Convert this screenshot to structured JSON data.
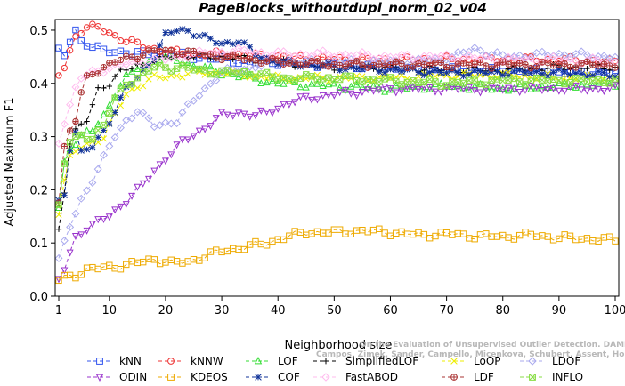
{
  "chart_data": {
    "type": "line",
    "title": "PageBlocks_withoutdupl_norm_02_v04",
    "xlabel": "Neighborhood size",
    "ylabel": "Adjusted Maximum F1",
    "xlim": [
      1,
      100
    ],
    "ylim": [
      0,
      0.52
    ],
    "xticks": [
      1,
      10,
      20,
      30,
      40,
      50,
      60,
      70,
      80,
      90,
      100
    ],
    "yticks": [
      0.0,
      0.1,
      0.2,
      0.3,
      0.4,
      0.5
    ],
    "ytick_labels": [
      "0.0",
      "0.1",
      "0.2",
      "0.3",
      "0.4",
      "0.5"
    ],
    "grid": false,
    "legend_position": "bottom",
    "watermark": [
      "Campos, Zimek, Sander, Campello, Micenkova, Schubert, Assent, Houle",
      "On the Evaluation of Unsupervised Outlier Detection. DAMI, 2015."
    ],
    "series": [
      {
        "name": "kNN",
        "color": "#3355ee",
        "marker": "square",
        "dash": "4,3",
        "points": [
          [
            1,
            0.46
          ],
          [
            2,
            0.45
          ],
          [
            3,
            0.48
          ],
          [
            4,
            0.5
          ],
          [
            5,
            0.48
          ],
          [
            7,
            0.47
          ],
          [
            9,
            0.46
          ],
          [
            12,
            0.46
          ],
          [
            16,
            0.455
          ],
          [
            20,
            0.455
          ],
          [
            25,
            0.45
          ],
          [
            30,
            0.445
          ],
          [
            35,
            0.44
          ],
          [
            40,
            0.44
          ],
          [
            50,
            0.435
          ],
          [
            60,
            0.43
          ],
          [
            70,
            0.425
          ],
          [
            80,
            0.425
          ],
          [
            90,
            0.42
          ],
          [
            100,
            0.42
          ]
        ]
      },
      {
        "name": "kNNW",
        "color": "#ee3333",
        "marker": "circle",
        "dash": "4,3",
        "points": [
          [
            1,
            0.415
          ],
          [
            2,
            0.43
          ],
          [
            3,
            0.46
          ],
          [
            4,
            0.49
          ],
          [
            5,
            0.5
          ],
          [
            6,
            0.505
          ],
          [
            8,
            0.505
          ],
          [
            10,
            0.495
          ],
          [
            13,
            0.48
          ],
          [
            16,
            0.47
          ],
          [
            20,
            0.46
          ],
          [
            25,
            0.455
          ],
          [
            30,
            0.455
          ],
          [
            40,
            0.45
          ],
          [
            50,
            0.445
          ],
          [
            60,
            0.445
          ],
          [
            70,
            0.445
          ],
          [
            80,
            0.445
          ],
          [
            90,
            0.445
          ],
          [
            100,
            0.44
          ]
        ]
      },
      {
        "name": "LOF",
        "color": "#33dd33",
        "marker": "triangle-up",
        "dash": "4,3",
        "points": [
          [
            1,
            0.165
          ],
          [
            2,
            0.25
          ],
          [
            3,
            0.28
          ],
          [
            5,
            0.3
          ],
          [
            7,
            0.31
          ],
          [
            9,
            0.34
          ],
          [
            11,
            0.38
          ],
          [
            13,
            0.41
          ],
          [
            15,
            0.43
          ],
          [
            18,
            0.445
          ],
          [
            22,
            0.445
          ],
          [
            26,
            0.43
          ],
          [
            30,
            0.42
          ],
          [
            35,
            0.41
          ],
          [
            40,
            0.4
          ],
          [
            50,
            0.395
          ],
          [
            60,
            0.39
          ],
          [
            70,
            0.395
          ],
          [
            80,
            0.39
          ],
          [
            90,
            0.395
          ],
          [
            100,
            0.4
          ]
        ]
      },
      {
        "name": "SimplifiedLOF",
        "color": "#000000",
        "marker": "plus",
        "dash": "4,3",
        "points": [
          [
            1,
            0.125
          ],
          [
            2,
            0.2
          ],
          [
            3,
            0.29
          ],
          [
            4,
            0.31
          ],
          [
            6,
            0.33
          ],
          [
            8,
            0.39
          ],
          [
            10,
            0.4
          ],
          [
            12,
            0.42
          ],
          [
            15,
            0.435
          ],
          [
            18,
            0.44
          ],
          [
            22,
            0.455
          ],
          [
            25,
            0.45
          ],
          [
            30,
            0.45
          ],
          [
            35,
            0.445
          ],
          [
            40,
            0.44
          ],
          [
            50,
            0.43
          ],
          [
            60,
            0.43
          ],
          [
            70,
            0.425
          ],
          [
            80,
            0.425
          ],
          [
            90,
            0.43
          ],
          [
            100,
            0.43
          ]
        ]
      },
      {
        "name": "LoOP",
        "color": "#eeee00",
        "marker": "x",
        "dash": "4,3",
        "points": [
          [
            1,
            0.16
          ],
          [
            2,
            0.22
          ],
          [
            3,
            0.26
          ],
          [
            5,
            0.28
          ],
          [
            7,
            0.29
          ],
          [
            9,
            0.3
          ],
          [
            11,
            0.34
          ],
          [
            13,
            0.38
          ],
          [
            15,
            0.395
          ],
          [
            18,
            0.41
          ],
          [
            22,
            0.415
          ],
          [
            26,
            0.42
          ],
          [
            30,
            0.42
          ],
          [
            35,
            0.415
          ],
          [
            40,
            0.41
          ],
          [
            50,
            0.41
          ],
          [
            60,
            0.41
          ],
          [
            70,
            0.415
          ],
          [
            80,
            0.415
          ],
          [
            90,
            0.41
          ],
          [
            100,
            0.41
          ]
        ]
      },
      {
        "name": "LDOF",
        "color": "#aaaaee",
        "marker": "diamond",
        "dash": "4,3",
        "points": [
          [
            1,
            0.07
          ],
          [
            2,
            0.1
          ],
          [
            3,
            0.13
          ],
          [
            5,
            0.18
          ],
          [
            7,
            0.22
          ],
          [
            9,
            0.26
          ],
          [
            11,
            0.3
          ],
          [
            13,
            0.33
          ],
          [
            15,
            0.35
          ],
          [
            18,
            0.32
          ],
          [
            22,
            0.33
          ],
          [
            26,
            0.38
          ],
          [
            30,
            0.42
          ],
          [
            35,
            0.43
          ],
          [
            40,
            0.44
          ],
          [
            50,
            0.44
          ],
          [
            60,
            0.44
          ],
          [
            70,
            0.445
          ],
          [
            75,
            0.465
          ],
          [
            80,
            0.45
          ],
          [
            90,
            0.455
          ],
          [
            100,
            0.45
          ]
        ]
      },
      {
        "name": "ODIN",
        "color": "#9933cc",
        "marker": "triangle-down",
        "dash": "4,3",
        "points": [
          [
            1,
            0.03
          ],
          [
            2,
            0.05
          ],
          [
            4,
            0.11
          ],
          [
            6,
            0.13
          ],
          [
            8,
            0.14
          ],
          [
            10,
            0.15
          ],
          [
            12,
            0.17
          ],
          [
            14,
            0.19
          ],
          [
            16,
            0.21
          ],
          [
            18,
            0.235
          ],
          [
            20,
            0.26
          ],
          [
            23,
            0.29
          ],
          [
            26,
            0.31
          ],
          [
            30,
            0.34
          ],
          [
            33,
            0.345
          ],
          [
            36,
            0.34
          ],
          [
            38,
            0.345
          ],
          [
            41,
            0.36
          ],
          [
            44,
            0.37
          ],
          [
            47,
            0.375
          ],
          [
            50,
            0.38
          ],
          [
            55,
            0.385
          ],
          [
            60,
            0.39
          ],
          [
            70,
            0.39
          ],
          [
            80,
            0.39
          ],
          [
            90,
            0.39
          ],
          [
            100,
            0.39
          ]
        ]
      },
      {
        "name": "KDEOS",
        "color": "#eeaa00",
        "marker": "square",
        "dash": "4,3",
        "points": [
          [
            1,
            0.03
          ],
          [
            2,
            0.035
          ],
          [
            4,
            0.04
          ],
          [
            6,
            0.05
          ],
          [
            8,
            0.052
          ],
          [
            10,
            0.055
          ],
          [
            13,
            0.058
          ],
          [
            16,
            0.065
          ],
          [
            18,
            0.07
          ],
          [
            21,
            0.062
          ],
          [
            24,
            0.065
          ],
          [
            27,
            0.075
          ],
          [
            30,
            0.085
          ],
          [
            34,
            0.092
          ],
          [
            38,
            0.1
          ],
          [
            42,
            0.113
          ],
          [
            45,
            0.12
          ],
          [
            50,
            0.12
          ],
          [
            55,
            0.123
          ],
          [
            60,
            0.12
          ],
          [
            65,
            0.115
          ],
          [
            70,
            0.117
          ],
          [
            75,
            0.113
          ],
          [
            80,
            0.112
          ],
          [
            85,
            0.115
          ],
          [
            90,
            0.11
          ],
          [
            95,
            0.108
          ],
          [
            100,
            0.105
          ]
        ]
      },
      {
        "name": "COF",
        "color": "#113399",
        "marker": "asterisk",
        "dash": "4,3",
        "points": [
          [
            1,
            0.175
          ],
          [
            2,
            0.19
          ],
          [
            3,
            0.28
          ],
          [
            4,
            0.31
          ],
          [
            5,
            0.27
          ],
          [
            7,
            0.28
          ],
          [
            9,
            0.31
          ],
          [
            11,
            0.35
          ],
          [
            13,
            0.39
          ],
          [
            15,
            0.41
          ],
          [
            18,
            0.45
          ],
          [
            20,
            0.49
          ],
          [
            22,
            0.5
          ],
          [
            24,
            0.5
          ],
          [
            27,
            0.485
          ],
          [
            30,
            0.475
          ],
          [
            33,
            0.48
          ],
          [
            36,
            0.455
          ],
          [
            40,
            0.44
          ],
          [
            45,
            0.435
          ],
          [
            50,
            0.43
          ],
          [
            60,
            0.425
          ],
          [
            70,
            0.42
          ],
          [
            80,
            0.42
          ],
          [
            90,
            0.42
          ],
          [
            100,
            0.415
          ]
        ]
      },
      {
        "name": "FastABOD",
        "color": "#ffbbee",
        "marker": "diamond",
        "dash": "4,3",
        "points": [
          [
            1,
            0.29
          ],
          [
            2,
            0.33
          ],
          [
            3,
            0.36
          ],
          [
            4,
            0.39
          ],
          [
            5,
            0.41
          ],
          [
            7,
            0.42
          ],
          [
            10,
            0.43
          ],
          [
            15,
            0.44
          ],
          [
            20,
            0.445
          ],
          [
            25,
            0.455
          ],
          [
            30,
            0.46
          ],
          [
            35,
            0.46
          ],
          [
            40,
            0.455
          ],
          [
            50,
            0.455
          ],
          [
            60,
            0.45
          ],
          [
            70,
            0.45
          ],
          [
            80,
            0.445
          ],
          [
            90,
            0.445
          ],
          [
            100,
            0.44
          ]
        ]
      },
      {
        "name": "LDF",
        "color": "#aa3333",
        "marker": "circle-plus",
        "dash": "4,3",
        "points": [
          [
            1,
            0.18
          ],
          [
            2,
            0.28
          ],
          [
            3,
            0.31
          ],
          [
            4,
            0.33
          ],
          [
            5,
            0.38
          ],
          [
            6,
            0.41
          ],
          [
            7,
            0.42
          ],
          [
            9,
            0.43
          ],
          [
            11,
            0.44
          ],
          [
            14,
            0.45
          ],
          [
            18,
            0.46
          ],
          [
            22,
            0.46
          ],
          [
            26,
            0.455
          ],
          [
            30,
            0.45
          ],
          [
            40,
            0.44
          ],
          [
            50,
            0.435
          ],
          [
            60,
            0.435
          ],
          [
            70,
            0.435
          ],
          [
            80,
            0.435
          ],
          [
            90,
            0.435
          ],
          [
            100,
            0.435
          ]
        ]
      },
      {
        "name": "INFLO",
        "color": "#88dd44",
        "marker": "square-x",
        "dash": "4,3",
        "points": [
          [
            1,
            0.17
          ],
          [
            2,
            0.25
          ],
          [
            3,
            0.29
          ],
          [
            5,
            0.3
          ],
          [
            7,
            0.3
          ],
          [
            9,
            0.32
          ],
          [
            11,
            0.37
          ],
          [
            13,
            0.4
          ],
          [
            15,
            0.41
          ],
          [
            18,
            0.43
          ],
          [
            22,
            0.43
          ],
          [
            26,
            0.425
          ],
          [
            30,
            0.42
          ],
          [
            35,
            0.42
          ],
          [
            40,
            0.41
          ],
          [
            50,
            0.41
          ],
          [
            60,
            0.405
          ],
          [
            70,
            0.4
          ],
          [
            80,
            0.405
          ],
          [
            90,
            0.405
          ],
          [
            100,
            0.405
          ]
        ]
      }
    ]
  }
}
